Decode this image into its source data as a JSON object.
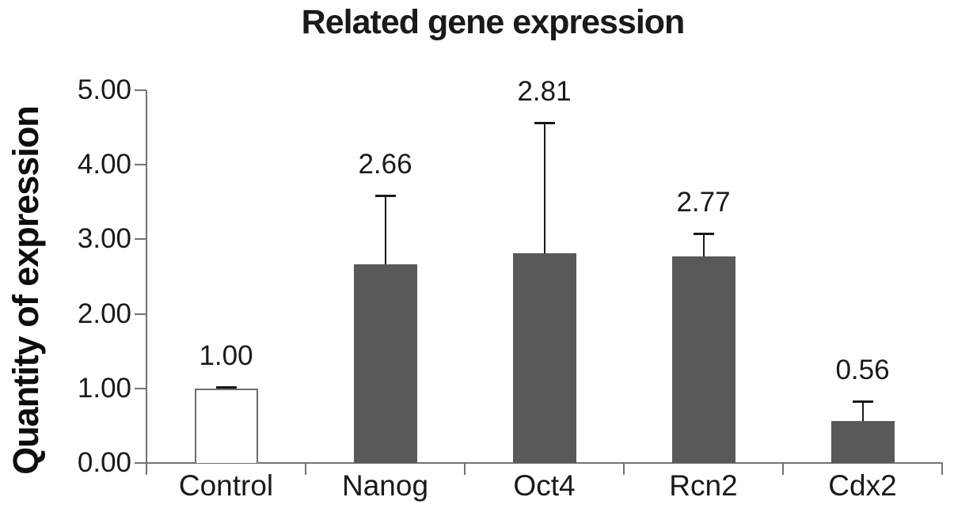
{
  "chart_data": {
    "type": "bar",
    "title": "Related gene expression",
    "xlabel": "",
    "ylabel": "Quantity of expression",
    "categories": [
      "Control",
      "Nanog",
      "Oct4",
      "Rcn2",
      "Cdx2"
    ],
    "values": [
      1.0,
      2.66,
      2.81,
      2.77,
      0.56
    ],
    "value_labels": [
      "1.00",
      "2.66",
      "2.81",
      "2.77",
      "0.56"
    ],
    "errors_upper": [
      0.02,
      0.93,
      1.75,
      0.31,
      0.27
    ],
    "y_tick_labels": [
      "0.00",
      "1.00",
      "2.00",
      "3.00",
      "4.00",
      "5.00"
    ],
    "y_tick_values": [
      0,
      1,
      2,
      3,
      4,
      5
    ],
    "ylim": [
      0,
      5
    ],
    "grid": false,
    "legend_position": "none",
    "colors": {
      "bar_fill": "#595959",
      "control_bar_fill": "#ffffff",
      "bar_border": "#6e6e6e",
      "axis": "#737373",
      "error_bar": "#1a1a1a",
      "text": "#1a1a1a"
    }
  }
}
